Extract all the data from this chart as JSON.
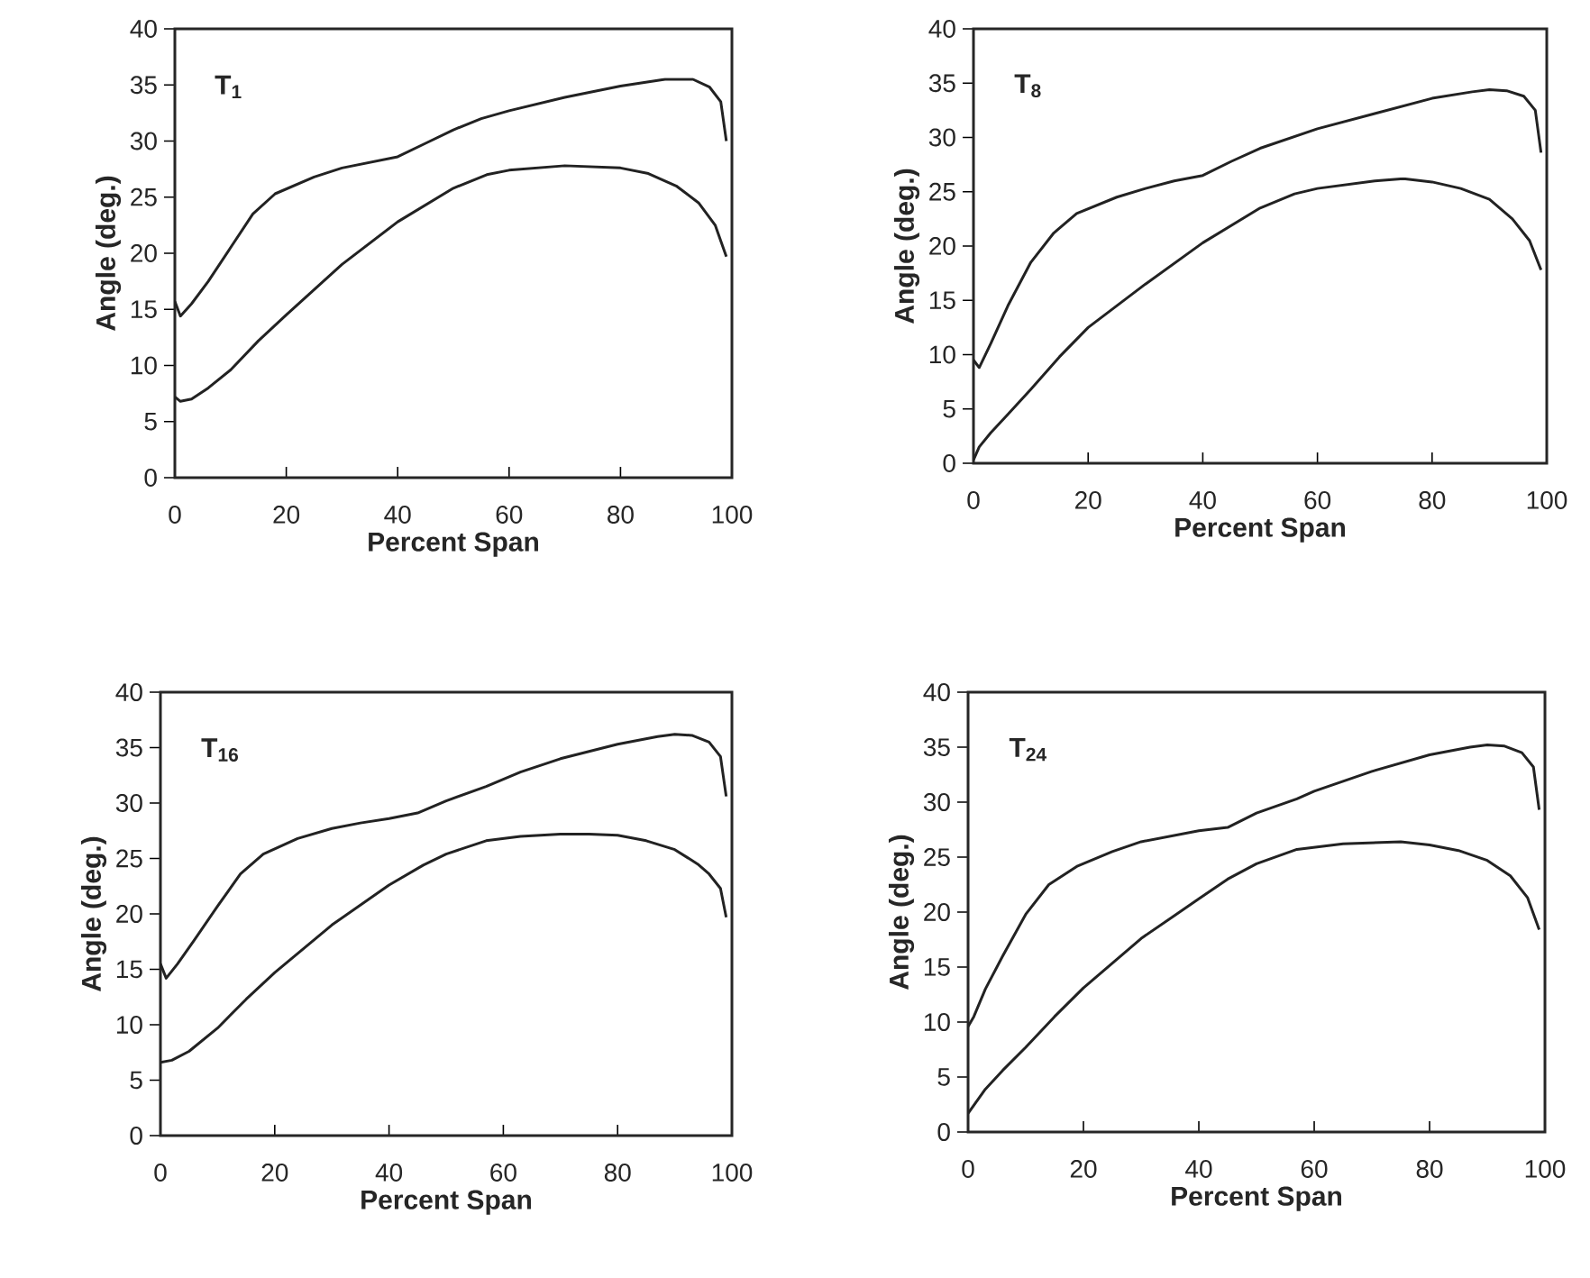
{
  "chart_data": [
    {
      "type": "line",
      "xlabel": "Percent Span",
      "ylabel": "Angle (deg.)",
      "annotations": [
        "**T**$_{1}$"
      ],
      "xlim": [
        0,
        100
      ],
      "ylim": [
        0,
        40
      ],
      "xticks": [
        0,
        20,
        40,
        60,
        80,
        100
      ],
      "yticks": [
        0,
        5,
        10,
        15,
        20,
        25,
        30,
        35,
        40
      ],
      "series": [
        {
          "color": "#222222",
          "x": [
            0,
            1,
            3,
            6,
            10,
            14,
            18,
            25,
            30,
            40,
            45,
            50,
            55,
            60,
            70,
            80,
            88,
            93,
            96,
            98,
            99
          ],
          "values": [
            15.7,
            14.4,
            15.5,
            17.5,
            20.5,
            23.5,
            25.3,
            26.8,
            27.6,
            28.6,
            29.8,
            31,
            32,
            32.7,
            33.9,
            34.9,
            35.5,
            35.5,
            34.8,
            33.5,
            30
          ]
        },
        {
          "color": "#222222",
          "x": [
            0,
            1,
            3,
            6,
            10,
            15,
            20,
            30,
            40,
            50,
            56,
            60,
            70,
            80,
            85,
            90,
            94,
            97,
            99
          ],
          "values": [
            7.2,
            6.8,
            7.0,
            8.0,
            9.6,
            12.2,
            14.5,
            19.0,
            22.8,
            25.8,
            27,
            27.4,
            27.8,
            27.6,
            27.1,
            26,
            24.5,
            22.5,
            19.7
          ]
        }
      ]
    },
    {
      "type": "line",
      "xlabel": "Percent Span",
      "ylabel": "Angle (deg.)",
      "annotations": [
        "**T**$_{8}$"
      ],
      "xlim": [
        0,
        100
      ],
      "ylim": [
        0,
        40
      ],
      "xticks": [
        0,
        20,
        40,
        60,
        80,
        100
      ],
      "yticks": [
        0,
        5,
        10,
        15,
        20,
        25,
        30,
        35,
        40
      ],
      "series": [
        {
          "color": "#222222",
          "x": [
            0,
            1,
            3,
            6,
            10,
            14,
            18,
            25,
            30,
            35,
            40,
            45,
            50,
            60,
            70,
            80,
            87,
            90,
            93,
            96,
            98,
            99
          ],
          "values": [
            9.5,
            8.8,
            11,
            14.5,
            18.5,
            21.2,
            23,
            24.5,
            25.3,
            26,
            26.5,
            27.8,
            29,
            30.8,
            32.2,
            33.6,
            34.2,
            34.4,
            34.3,
            33.8,
            32.5,
            28.6
          ]
        },
        {
          "color": "#222222",
          "x": [
            0,
            1,
            3,
            6,
            10,
            15,
            20,
            30,
            40,
            50,
            56,
            60,
            70,
            75,
            80,
            85,
            90,
            94,
            97,
            99
          ],
          "values": [
            0.3,
            1.5,
            2.8,
            4.5,
            6.8,
            9.8,
            12.5,
            16.5,
            20.3,
            23.5,
            24.8,
            25.3,
            26,
            26.2,
            25.9,
            25.3,
            24.3,
            22.5,
            20.5,
            17.8
          ]
        }
      ]
    },
    {
      "type": "line",
      "xlabel": "Percent Span",
      "ylabel": "Angle (deg.)",
      "annotations": [
        "**T**$_{16}$"
      ],
      "xlim": [
        0,
        100
      ],
      "ylim": [
        0,
        40
      ],
      "xticks": [
        0,
        20,
        40,
        60,
        80,
        100
      ],
      "yticks": [
        0,
        5,
        10,
        15,
        20,
        25,
        30,
        35,
        40
      ],
      "series": [
        {
          "color": "#222222",
          "x": [
            0,
            1,
            3,
            6,
            10,
            14,
            18,
            24,
            30,
            35,
            40,
            45,
            50,
            57,
            63,
            70,
            80,
            87,
            90,
            93,
            96,
            98,
            99
          ],
          "values": [
            15.5,
            14.2,
            15.5,
            17.7,
            20.7,
            23.6,
            25.4,
            26.8,
            27.7,
            28.2,
            28.6,
            29.1,
            30.2,
            31.5,
            32.8,
            34,
            35.3,
            36,
            36.2,
            36.1,
            35.5,
            34.2,
            30.6
          ]
        },
        {
          "color": "#222222",
          "x": [
            0,
            2,
            5,
            10,
            15,
            20,
            30,
            40,
            46,
            50,
            57,
            63,
            70,
            75,
            80,
            85,
            90,
            94,
            96,
            98,
            99
          ],
          "values": [
            6.6,
            6.8,
            7.6,
            9.7,
            12.3,
            14.7,
            19,
            22.6,
            24.4,
            25.4,
            26.6,
            27,
            27.2,
            27.2,
            27.1,
            26.6,
            25.8,
            24.5,
            23.6,
            22.3,
            19.7
          ]
        }
      ]
    },
    {
      "type": "line",
      "xlabel": "Percent Span",
      "ylabel": "Angle (deg.)",
      "annotations": [
        "**T**$_{24}$"
      ],
      "xlim": [
        0,
        100
      ],
      "ylim": [
        0,
        40
      ],
      "xticks": [
        0,
        20,
        40,
        60,
        80,
        100
      ],
      "yticks": [
        0,
        5,
        10,
        15,
        20,
        25,
        30,
        35,
        40
      ],
      "series": [
        {
          "color": "#222222",
          "x": [
            0,
            1,
            3,
            6,
            10,
            14,
            19,
            25,
            30,
            40,
            45,
            50,
            57,
            60,
            70,
            80,
            87,
            90,
            93,
            96,
            98,
            99
          ],
          "values": [
            9.6,
            10.5,
            13,
            16,
            19.8,
            22.5,
            24.2,
            25.5,
            26.4,
            27.4,
            27.7,
            29,
            30.3,
            31,
            32.8,
            34.3,
            35,
            35.2,
            35.1,
            34.5,
            33.2,
            29.3
          ]
        },
        {
          "color": "#222222",
          "x": [
            0,
            3,
            6,
            10,
            15,
            20,
            30,
            40,
            45,
            50,
            57,
            65,
            75,
            80,
            85,
            90,
            94,
            97,
            99
          ],
          "values": [
            1.7,
            3.9,
            5.6,
            7.7,
            10.5,
            13.1,
            17.6,
            21.2,
            23,
            24.4,
            25.7,
            26.2,
            26.4,
            26.1,
            25.6,
            24.7,
            23.3,
            21.3,
            18.4
          ]
        }
      ]
    }
  ]
}
